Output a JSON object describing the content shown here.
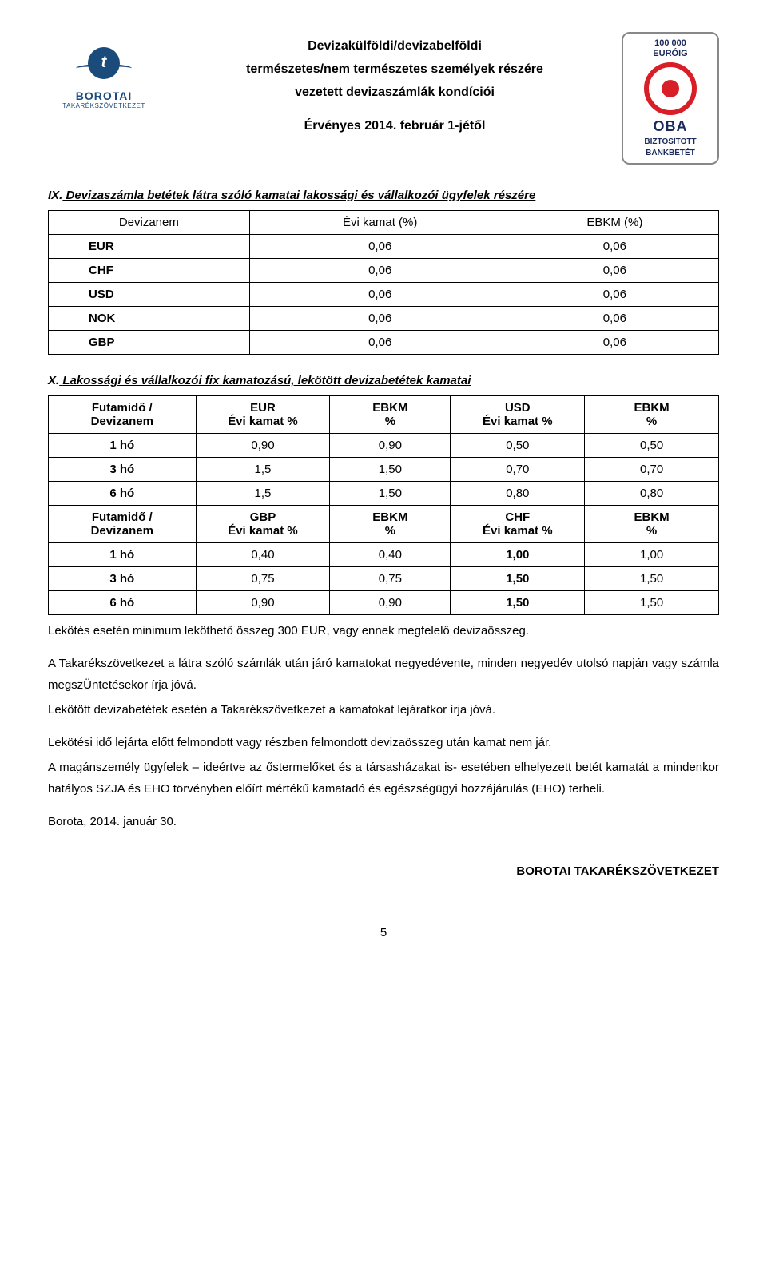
{
  "header": {
    "logo_left": {
      "letter": "t",
      "name": "BOROTAI",
      "sub": "TAKARÉKSZÖVETKEZET"
    },
    "line1": "Devizakülföldi/devizabelföldi",
    "line2": "természetes/nem természetes személyek részére",
    "line3": "vezetett devizaszámlák kondíciói",
    "valid": "Érvényes 2014. február 1-jétől",
    "oba": {
      "top1": "100 000",
      "top2": "EURÓIG",
      "name": "OBA",
      "bot1": "BIZTOSÍTOTT",
      "bot2": "BANKBETÉT"
    }
  },
  "section_ix": {
    "prefix": "IX.",
    "title": "Devizaszámla betétek látra szóló kamatai lakossági és vállalkozói ügyfelek részére",
    "table": {
      "columns": [
        "Devizanem",
        "Évi kamat (%)",
        "EBKM (%)"
      ],
      "rows": [
        [
          "EUR",
          "0,06",
          "0,06"
        ],
        [
          "CHF",
          "0,06",
          "0,06"
        ],
        [
          "USD",
          "0,06",
          "0,06"
        ],
        [
          "NOK",
          "0,06",
          "0,06"
        ],
        [
          "GBP",
          "0,06",
          "0,06"
        ]
      ]
    }
  },
  "section_x": {
    "prefix": "X.",
    "title": "Lakossági és vállalkozói fix kamatozású, lekötött devizabetétek kamatai",
    "header1": {
      "c1a": "Futamidő /",
      "c1b": "Devizanem",
      "c2a": "EUR",
      "c2b": "Évi kamat %",
      "c3a": "EBKM",
      "c3b": "%",
      "c4a": "USD",
      "c4b": "Évi kamat %",
      "c5a": "EBKM",
      "c5b": "%"
    },
    "rows1": [
      [
        "1 hó",
        "0,90",
        "0,90",
        "0,50",
        "0,50"
      ],
      [
        "3 hó",
        "1,5",
        "1,50",
        "0,70",
        "0,70"
      ],
      [
        "6 hó",
        "1,5",
        "1,50",
        "0,80",
        "0,80"
      ]
    ],
    "header2": {
      "c1a": "Futamidő /",
      "c1b": "Devizanem",
      "c2a": "GBP",
      "c2b": "Évi kamat %",
      "c3a": "EBKM",
      "c3b": "%",
      "c4a": "CHF",
      "c4b": "Évi kamat %",
      "c5a": "EBKM",
      "c5b": "%"
    },
    "rows2": [
      [
        "1 hó",
        "0,40",
        "0,40",
        "1,00",
        "1,00"
      ],
      [
        "3 hó",
        "0,75",
        "0,75",
        "1,50",
        "1,50"
      ],
      [
        "6 hó",
        "0,90",
        "0,90",
        "1,50",
        "1,50"
      ]
    ],
    "note": "Lekötés esetén minimum leköthető összeg 300 EUR, vagy ennek megfelelő devizaösszeg."
  },
  "paragraphs": {
    "p1": "A Takarékszövetkezet a látra szóló számlák után járó kamatokat negyedévente, minden negyedév utolsó napján vagy számla megszÜntetésekor írja jóvá.",
    "p2": "Lekötött devizabetétek esetén a Takarékszövetkezet a kamatokat lejáratkor írja jóvá.",
    "p3": "Lekötési idő lejárta előtt felmondott vagy részben felmondott devizaösszeg után kamat nem jár.",
    "p4": "A magánszemély ügyfelek – ideértve az őstermelőket és a társasházakat is- esetében elhelyezett betét kamatát a mindenkor hatályos SZJA és EHO törvényben előírt mértékű kamatadó és egészségügyi hozzájárulás (EHO) terheli."
  },
  "date": "Borota, 2014. január 30.",
  "signature": "BOROTAI TAKARÉKSZÖVETKEZET",
  "page": "5"
}
